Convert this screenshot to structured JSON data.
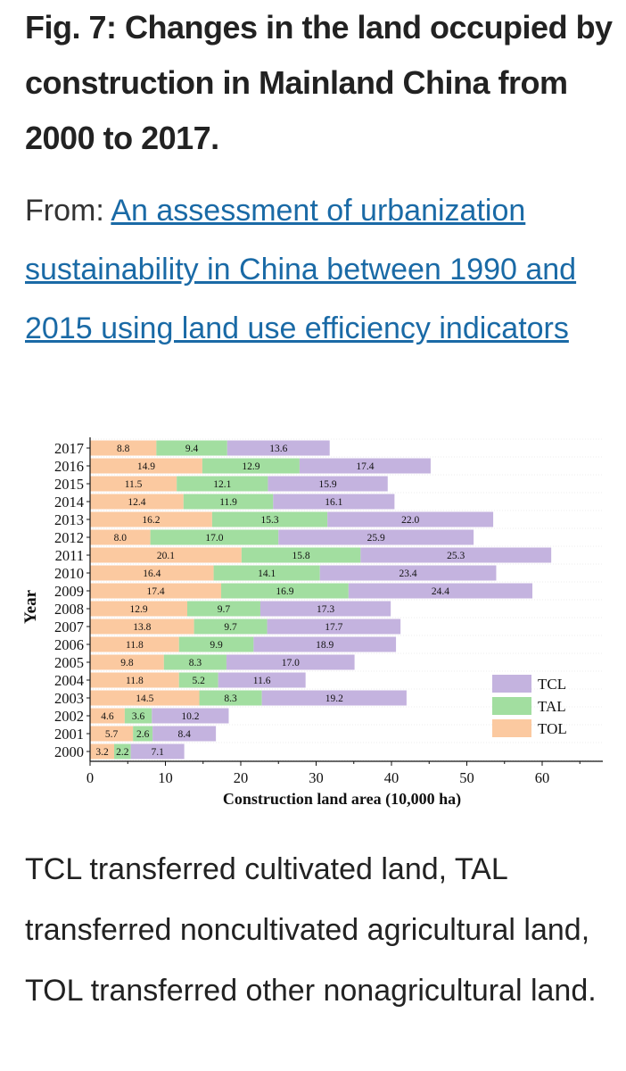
{
  "figure": {
    "title": "Fig. 7: Changes in the land occupied by construction in Mainland China from 2000 to 2017.",
    "source_prefix": "From: ",
    "source_link": "An assessment of urbanization sustainability in China between 1990 and 2015 using land use efficiency indicators",
    "caption": "TCL transferred cultivated land, TAL transferred noncultivated agricultural land, TOL transferred other nonagricultural land."
  },
  "chart_data": {
    "type": "bar",
    "orientation": "horizontal",
    "stacked": true,
    "xlabel": "Construction land area (10,000 ha)",
    "ylabel": "Year",
    "xlim": [
      0,
      68
    ],
    "xticks": [
      0,
      10,
      20,
      30,
      40,
      50,
      60
    ],
    "grid": false,
    "legend_position": "bottom-right",
    "categories": [
      "2000",
      "2001",
      "2002",
      "2003",
      "2004",
      "2005",
      "2006",
      "2007",
      "2008",
      "2009",
      "2010",
      "2011",
      "2012",
      "2013",
      "2014",
      "2015",
      "2016",
      "2017"
    ],
    "series": [
      {
        "name": "TOL",
        "color": "#fbc9a0",
        "values": [
          3.2,
          5.7,
          4.6,
          14.5,
          11.8,
          9.8,
          11.8,
          13.8,
          12.9,
          17.4,
          16.4,
          20.1,
          8.0,
          16.2,
          12.4,
          11.5,
          14.9,
          8.8
        ]
      },
      {
        "name": "TAL",
        "color": "#a2dea0",
        "values": [
          2.2,
          2.6,
          3.6,
          8.3,
          5.2,
          8.3,
          9.9,
          9.7,
          9.7,
          16.9,
          14.1,
          15.8,
          17.0,
          15.3,
          11.9,
          12.1,
          12.9,
          9.4
        ]
      },
      {
        "name": "TCL",
        "color": "#c4b3df",
        "values": [
          7.1,
          8.4,
          10.2,
          19.2,
          11.6,
          17.0,
          18.9,
          17.7,
          17.3,
          24.4,
          23.4,
          25.3,
          25.9,
          22.0,
          16.1,
          15.9,
          17.4,
          13.6
        ]
      }
    ],
    "data_labels": [
      [
        "3.2",
        "5.7",
        "4.6",
        "14.5",
        "11.8",
        "9.8",
        "11.8",
        "13.8",
        "12.9",
        "17.4",
        "16.4",
        "20.1",
        "8.0",
        "16.2",
        "12.4",
        "11.5",
        "14.9",
        "8.8"
      ],
      [
        "2.2",
        "2.6",
        "3.6",
        "8.3",
        "5.2",
        "8.3",
        "9.9",
        "9.7",
        "9.7",
        "16.9",
        "14.1",
        "15.8",
        "17.0",
        "15.3",
        "11.9",
        "12.1",
        "12.9",
        "9.4"
      ],
      [
        "7.1",
        "8.4",
        "10.2",
        "19.2",
        "11.6",
        "17.0",
        "18.9",
        "17.7",
        "17.3",
        "24.4",
        "23.4",
        "25.3",
        "25.9",
        "22.0",
        "16.1",
        "15.9",
        "17.4",
        "13.6"
      ]
    ],
    "legend": [
      "TCL",
      "TAL",
      "TOL"
    ]
  }
}
